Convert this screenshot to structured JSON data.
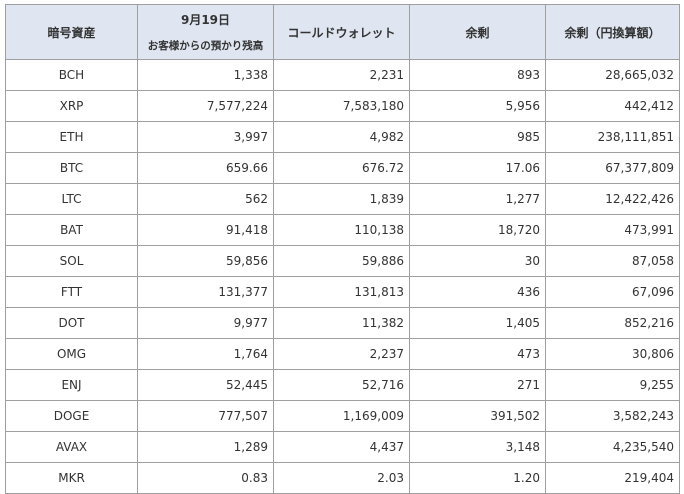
{
  "table": {
    "headers": {
      "asset": "暗号資産",
      "date": "9月19日",
      "customer_deposits": "お客様からの預かり残高",
      "cold_wallet": "コールドウォレット",
      "surplus": "余剰",
      "surplus_jpy": "余剰（円換算額）"
    },
    "rows": [
      {
        "asset": "BCH",
        "deposits": "1,338",
        "cold": "2,231",
        "surplus": "893",
        "jpy": "28,665,032"
      },
      {
        "asset": "XRP",
        "deposits": "7,577,224",
        "cold": "7,583,180",
        "surplus": "5,956",
        "jpy": "442,412"
      },
      {
        "asset": "ETH",
        "deposits": "3,997",
        "cold": "4,982",
        "surplus": "985",
        "jpy": "238,111,851"
      },
      {
        "asset": "BTC",
        "deposits": "659.66",
        "cold": "676.72",
        "surplus": "17.06",
        "jpy": "67,377,809"
      },
      {
        "asset": "LTC",
        "deposits": "562",
        "cold": "1,839",
        "surplus": "1,277",
        "jpy": "12,422,426"
      },
      {
        "asset": "BAT",
        "deposits": "91,418",
        "cold": "110,138",
        "surplus": "18,720",
        "jpy": "473,991"
      },
      {
        "asset": "SOL",
        "deposits": "59,856",
        "cold": "59,886",
        "surplus": "30",
        "jpy": "87,058"
      },
      {
        "asset": "FTT",
        "deposits": "131,377",
        "cold": "131,813",
        "surplus": "436",
        "jpy": "67,096"
      },
      {
        "asset": "DOT",
        "deposits": "9,977",
        "cold": "11,382",
        "surplus": "1,405",
        "jpy": "852,216"
      },
      {
        "asset": "OMG",
        "deposits": "1,764",
        "cold": "2,237",
        "surplus": "473",
        "jpy": "30,806"
      },
      {
        "asset": "ENJ",
        "deposits": "52,445",
        "cold": "52,716",
        "surplus": "271",
        "jpy": "9,255"
      },
      {
        "asset": "DOGE",
        "deposits": "777,507",
        "cold": "1,169,009",
        "surplus": "391,502",
        "jpy": "3,582,243"
      },
      {
        "asset": "AVAX",
        "deposits": "1,289",
        "cold": "4,437",
        "surplus": "3,148",
        "jpy": "4,235,540"
      },
      {
        "asset": "MKR",
        "deposits": "0.83",
        "cold": "2.03",
        "surplus": "1.20",
        "jpy": "219,404"
      }
    ]
  },
  "colors": {
    "header_bg": "#dfe6f1",
    "border": "#9f9f9f",
    "text": "#333333"
  }
}
